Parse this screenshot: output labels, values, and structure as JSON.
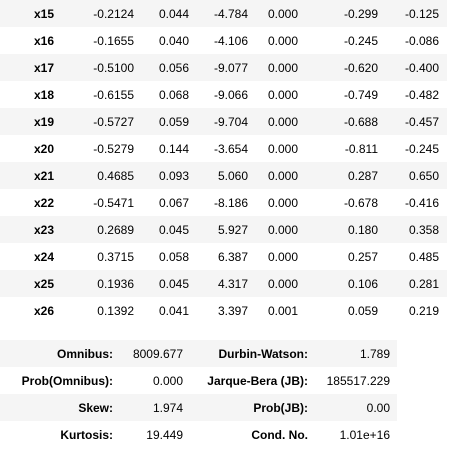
{
  "coefficients": {
    "rows": [
      {
        "name": "x15",
        "coef": "-0.2124",
        "std_err": "0.044",
        "t": "-4.784",
        "p": "0.000",
        "ci_low": "-0.299",
        "ci_high": "-0.125"
      },
      {
        "name": "x16",
        "coef": "-0.1655",
        "std_err": "0.040",
        "t": "-4.106",
        "p": "0.000",
        "ci_low": "-0.245",
        "ci_high": "-0.086"
      },
      {
        "name": "x17",
        "coef": "-0.5100",
        "std_err": "0.056",
        "t": "-9.077",
        "p": "0.000",
        "ci_low": "-0.620",
        "ci_high": "-0.400"
      },
      {
        "name": "x18",
        "coef": "-0.6155",
        "std_err": "0.068",
        "t": "-9.066",
        "p": "0.000",
        "ci_low": "-0.749",
        "ci_high": "-0.482"
      },
      {
        "name": "x19",
        "coef": "-0.5727",
        "std_err": "0.059",
        "t": "-9.704",
        "p": "0.000",
        "ci_low": "-0.688",
        "ci_high": "-0.457"
      },
      {
        "name": "x20",
        "coef": "-0.5279",
        "std_err": "0.144",
        "t": "-3.654",
        "p": "0.000",
        "ci_low": "-0.811",
        "ci_high": "-0.245"
      },
      {
        "name": "x21",
        "coef": "0.4685",
        "std_err": "0.093",
        "t": "5.060",
        "p": "0.000",
        "ci_low": "0.287",
        "ci_high": "0.650"
      },
      {
        "name": "x22",
        "coef": "-0.5471",
        "std_err": "0.067",
        "t": "-8.186",
        "p": "0.000",
        "ci_low": "-0.678",
        "ci_high": "-0.416"
      },
      {
        "name": "x23",
        "coef": "0.2689",
        "std_err": "0.045",
        "t": "5.927",
        "p": "0.000",
        "ci_low": "0.180",
        "ci_high": "0.358"
      },
      {
        "name": "x24",
        "coef": "0.3715",
        "std_err": "0.058",
        "t": "6.387",
        "p": "0.000",
        "ci_low": "0.257",
        "ci_high": "0.485"
      },
      {
        "name": "x25",
        "coef": "0.1936",
        "std_err": "0.045",
        "t": "4.317",
        "p": "0.000",
        "ci_low": "0.106",
        "ci_high": "0.281"
      },
      {
        "name": "x26",
        "coef": "0.1392",
        "std_err": "0.041",
        "t": "3.397",
        "p": "0.001",
        "ci_low": "0.059",
        "ci_high": "0.219"
      }
    ]
  },
  "diagnostics": {
    "rows": [
      {
        "label1": "Omnibus:",
        "value1": "8009.677",
        "label2": "Durbin-Watson:",
        "value2": "1.789"
      },
      {
        "label1": "Prob(Omnibus):",
        "value1": "0.000",
        "label2": "Jarque-Bera (JB):",
        "value2": "185517.229"
      },
      {
        "label1": "Skew:",
        "value1": "1.974",
        "label2": "Prob(JB):",
        "value2": "0.00"
      },
      {
        "label1": "Kurtosis:",
        "value1": "19.449",
        "label2": "Cond. No.",
        "value2": "1.01e+16"
      }
    ]
  },
  "colors": {
    "row_shade": "#f5f5f5",
    "background": "#ffffff",
    "text": "#000000"
  }
}
